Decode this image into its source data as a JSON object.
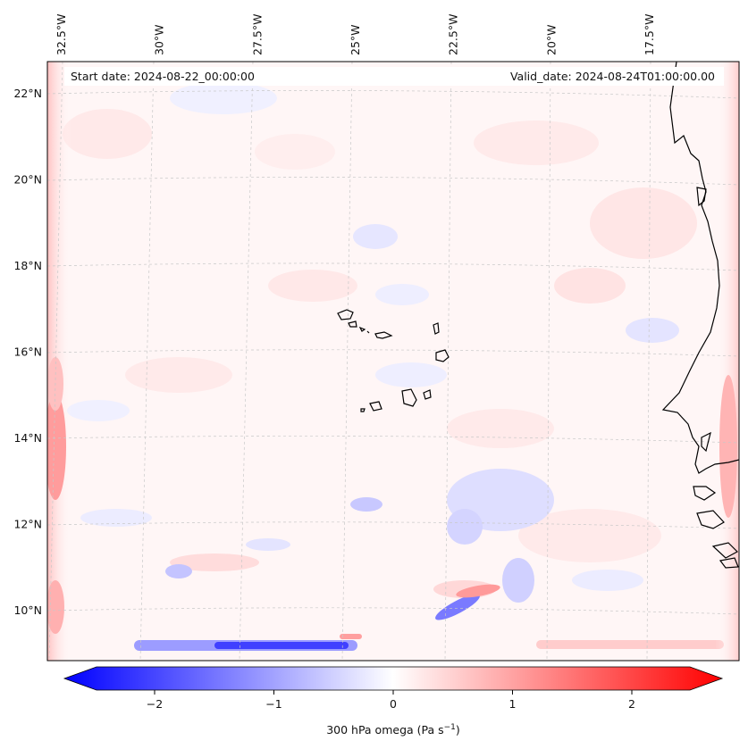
{
  "map": {
    "start_date_label": "Start date: 2024-08-22_00:00:00",
    "valid_date_label": "Valid_date: 2024-08-24T01:00:00.00",
    "lon_ticks": [
      {
        "value": -32.5,
        "label": "32.5°W"
      },
      {
        "value": -30.0,
        "label": "30°W"
      },
      {
        "value": -27.5,
        "label": "27.5°W"
      },
      {
        "value": -25.0,
        "label": "25°W"
      },
      {
        "value": -22.5,
        "label": "22.5°W"
      },
      {
        "value": -20.0,
        "label": "20°W"
      },
      {
        "value": -17.5,
        "label": "17.5°W"
      }
    ],
    "lat_ticks": [
      {
        "value": 22,
        "label": "22°N"
      },
      {
        "value": 20,
        "label": "20°N"
      },
      {
        "value": 18,
        "label": "18°N"
      },
      {
        "value": 16,
        "label": "16°N"
      },
      {
        "value": 14,
        "label": "14°N"
      },
      {
        "value": 12,
        "label": "12°N"
      },
      {
        "value": 10,
        "label": "10°N"
      }
    ],
    "field_name": "300 hPa omega",
    "region": "Cape Verde / West African coast"
  },
  "colorbar": {
    "label": "300 hPa omega (Pa s",
    "label_sup": "−1",
    "label_end": ")",
    "min": -2.6,
    "max": 2.6,
    "ticks": [
      {
        "value": -2,
        "label": "−2"
      },
      {
        "value": -1,
        "label": "−1"
      },
      {
        "value": 0,
        "label": "0"
      },
      {
        "value": 1,
        "label": "1"
      },
      {
        "value": 2,
        "label": "2"
      }
    ],
    "color_low": "#0000ff",
    "color_mid": "#ffffff",
    "color_high": "#ff0000"
  }
}
